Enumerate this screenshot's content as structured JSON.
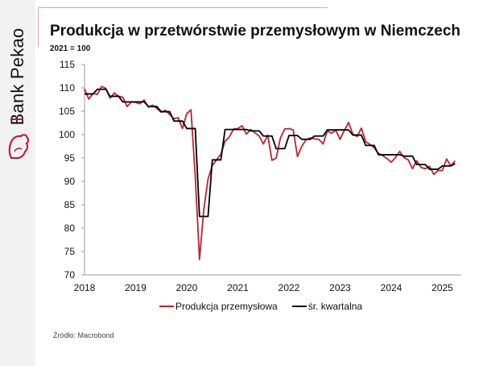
{
  "brand": {
    "name": "Bank Pekao",
    "accent": "#c8102e"
  },
  "header": {
    "title": "Produkcja w przetwórstwie przemysłowym w Niemczech",
    "subtitle": "2021 = 100"
  },
  "legend": {
    "series1": "Produkcja przemysłowa",
    "series2": "śr. kwartalna"
  },
  "source": "Źródło: Macrobond",
  "chart_data": {
    "type": "line",
    "title": "Produkcja w przetwórstwie przemysłowym w Niemczech",
    "subtitle": "2021 = 100",
    "xlabel": "",
    "ylabel": "",
    "ylim": [
      70,
      115
    ],
    "yticks": [
      70,
      75,
      80,
      85,
      90,
      95,
      100,
      105,
      110,
      115
    ],
    "xticks": [
      "2018",
      "2019",
      "2020",
      "2021",
      "2022",
      "2023",
      "2024",
      "2025"
    ],
    "xlim": [
      2018.0,
      2025.4
    ],
    "grid": false,
    "legend_position": "bottom",
    "series": [
      {
        "name": "Produkcja przemysłowa",
        "color": "#c0212e",
        "frequency": "monthly",
        "start": "2018-01",
        "values": [
          109.8,
          107.6,
          108.8,
          108.6,
          110.3,
          109.9,
          107.8,
          108.9,
          108.2,
          108.0,
          106.0,
          107.0,
          106.9,
          106.6,
          107.4,
          105.9,
          106.3,
          105.6,
          104.8,
          105.2,
          104.3,
          103.4,
          103.6,
          101.3,
          104.5,
          105.3,
          91.0,
          73.3,
          84.0,
          90.5,
          93.4,
          94.6,
          95.8,
          98.6,
          99.5,
          101.2,
          101.3,
          101.9,
          100.1,
          101.1,
          100.4,
          99.7,
          98.0,
          99.9,
          94.5,
          95.0,
          99.3,
          101.2,
          101.3,
          101.0,
          95.3,
          97.5,
          98.9,
          99.3,
          99.1,
          99.0,
          98.0,
          100.8,
          100.3,
          100.9,
          99.0,
          100.9,
          102.6,
          100.1,
          99.6,
          101.4,
          98.5,
          97.9,
          97.2,
          96.0,
          95.5,
          94.9,
          94.1,
          95.1,
          96.4,
          95.1,
          94.6,
          92.7,
          94.4,
          93.0,
          92.7,
          93.2,
          91.5,
          92.3,
          92.3,
          94.8,
          93.3,
          94.4
        ]
      },
      {
        "name": "śr. kwartalna",
        "color": "#000000",
        "frequency": "quarterly",
        "start": "2018-Q1",
        "values": [
          108.7,
          109.7,
          108.2,
          107.0,
          107.0,
          106.0,
          104.9,
          102.9,
          101.3,
          82.5,
          94.6,
          101.1,
          101.1,
          100.8,
          99.7,
          97.0,
          99.8,
          99.0,
          99.7,
          101.0,
          101.0,
          99.9,
          97.7,
          95.7,
          95.7,
          95.4,
          93.6,
          92.6,
          93.3,
          93.8
        ]
      }
    ]
  }
}
